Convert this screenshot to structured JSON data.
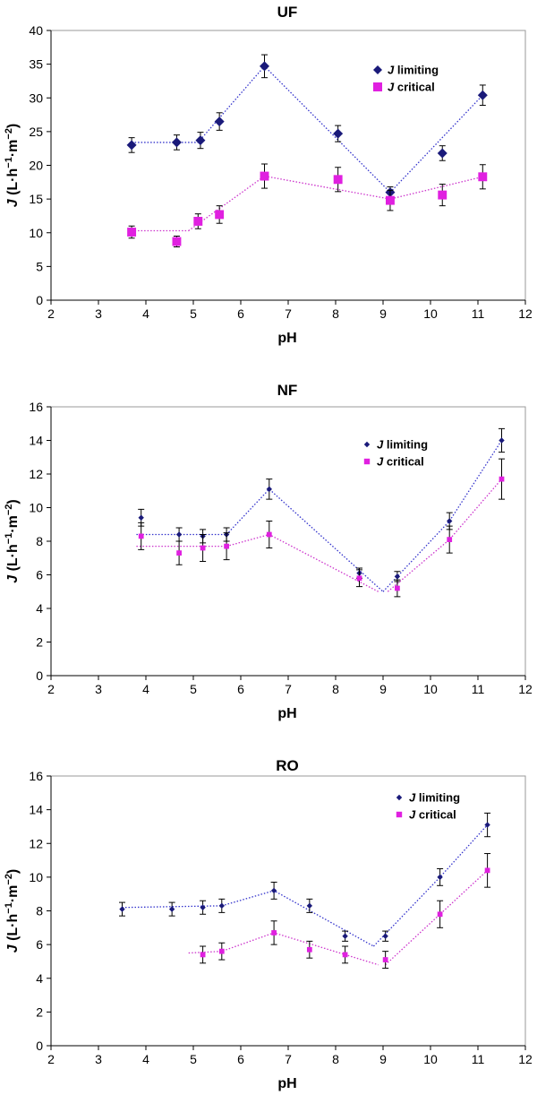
{
  "colors": {
    "limiting": "#1a1a7a",
    "critical": "#e020e0",
    "limiting_line": "#3333cc",
    "critical_line": "#cc33cc",
    "errorbar": "#000000"
  },
  "chart_data": [
    {
      "type": "scatter",
      "title": "UF",
      "xlabel": "pH",
      "ylabel": "J (L·h−1·m−2)",
      "ylabel_parts": {
        "italic": "J",
        "pre": " (L·h",
        "sup1": "−1",
        "mid": "·m",
        "sup2": "−2",
        "post": ")"
      },
      "xlim": [
        2,
        12
      ],
      "ylim": [
        0,
        40
      ],
      "xticks": [
        "2",
        "3",
        "4",
        "5",
        "6",
        "7",
        "8",
        "9",
        "10",
        "11",
        "12"
      ],
      "yticks": [
        "0",
        "5",
        "10",
        "15",
        "20",
        "25",
        "30",
        "35",
        "40"
      ],
      "legend": {
        "position": "top-right",
        "marker_size": "large"
      },
      "series": [
        {
          "name": "J limiting",
          "name_parts": {
            "italic": "J",
            "rest": " limiting"
          },
          "marker": "diamond",
          "points": [
            {
              "x": 3.7,
              "y": 23.0,
              "err": 1.1
            },
            {
              "x": 4.65,
              "y": 23.4,
              "err": 1.1
            },
            {
              "x": 5.15,
              "y": 23.7,
              "err": 1.2
            },
            {
              "x": 5.55,
              "y": 26.5,
              "err": 1.3
            },
            {
              "x": 6.5,
              "y": 34.7,
              "err": 1.7
            },
            {
              "x": 8.05,
              "y": 24.7,
              "err": 1.2
            },
            {
              "x": 9.15,
              "y": 16.0,
              "err": 0.8
            },
            {
              "x": 10.25,
              "y": 21.8,
              "err": 1.1
            },
            {
              "x": 11.1,
              "y": 30.4,
              "err": 1.5
            }
          ],
          "fit_segments": [
            [
              [
                3.7,
                23.4
              ],
              [
                5.1,
                23.4
              ]
            ],
            [
              [
                5.1,
                23.4
              ],
              [
                6.5,
                34.7
              ],
              [
                9.15,
                16.0
              ],
              [
                11.1,
                30.4
              ]
            ]
          ]
        },
        {
          "name": "J critical",
          "name_parts": {
            "italic": "J",
            "rest": " critical"
          },
          "marker": "square",
          "points": [
            {
              "x": 3.7,
              "y": 10.1,
              "err": 0.9
            },
            {
              "x": 4.65,
              "y": 8.7,
              "err": 0.8
            },
            {
              "x": 5.1,
              "y": 11.7,
              "err": 1.1
            },
            {
              "x": 5.55,
              "y": 12.7,
              "err": 1.3
            },
            {
              "x": 6.5,
              "y": 18.4,
              "err": 1.8
            },
            {
              "x": 8.05,
              "y": 17.9,
              "err": 1.8
            },
            {
              "x": 9.15,
              "y": 14.8,
              "err": 1.5
            },
            {
              "x": 10.25,
              "y": 15.6,
              "err": 1.6
            },
            {
              "x": 11.1,
              "y": 18.3,
              "err": 1.8
            }
          ],
          "fit_segments": [
            [
              [
                3.7,
                10.3
              ],
              [
                4.9,
                10.3
              ]
            ],
            [
              [
                4.9,
                10.3
              ],
              [
                6.5,
                18.4
              ],
              [
                9.15,
                15.0
              ],
              [
                11.1,
                18.3
              ]
            ]
          ]
        }
      ]
    },
    {
      "type": "scatter",
      "title": "NF",
      "xlabel": "pH",
      "ylabel": "J (L·h−1·m−2)",
      "ylabel_parts": {
        "italic": "J",
        "pre": " (L·h",
        "sup1": "−1",
        "mid": "·m",
        "sup2": "−2",
        "post": ")"
      },
      "xlim": [
        2,
        12
      ],
      "ylim": [
        0,
        16
      ],
      "xticks": [
        "2",
        "3",
        "4",
        "5",
        "6",
        "7",
        "8",
        "9",
        "10",
        "11",
        "12"
      ],
      "yticks": [
        "0",
        "2",
        "4",
        "6",
        "8",
        "10",
        "12",
        "14",
        "16"
      ],
      "legend": {
        "position": "top-right",
        "marker_size": "small"
      },
      "series": [
        {
          "name": "J limiting",
          "name_parts": {
            "italic": "J",
            "rest": " limiting"
          },
          "marker": "diamond",
          "points": [
            {
              "x": 3.9,
              "y": 9.4,
              "err": 0.5
            },
            {
              "x": 4.7,
              "y": 8.4,
              "err": 0.4
            },
            {
              "x": 5.2,
              "y": 8.3,
              "err": 0.4
            },
            {
              "x": 5.7,
              "y": 8.4,
              "err": 0.4
            },
            {
              "x": 6.6,
              "y": 11.1,
              "err": 0.6
            },
            {
              "x": 8.5,
              "y": 6.1,
              "err": 0.3
            },
            {
              "x": 9.3,
              "y": 5.9,
              "err": 0.3
            },
            {
              "x": 10.4,
              "y": 9.2,
              "err": 0.5
            },
            {
              "x": 11.5,
              "y": 14.0,
              "err": 0.7
            }
          ],
          "fit_segments": [
            [
              [
                3.8,
                8.4
              ],
              [
                5.7,
                8.4
              ]
            ],
            [
              [
                5.7,
                8.4
              ],
              [
                6.6,
                11.1
              ],
              [
                9.0,
                5.0
              ]
            ],
            [
              [
                9.0,
                5.0
              ],
              [
                10.4,
                9.2
              ],
              [
                11.5,
                14.0
              ]
            ]
          ]
        },
        {
          "name": "J critical",
          "name_parts": {
            "italic": "J",
            "rest": " critical"
          },
          "marker": "square",
          "points": [
            {
              "x": 3.9,
              "y": 8.3,
              "err": 0.8
            },
            {
              "x": 4.7,
              "y": 7.3,
              "err": 0.7
            },
            {
              "x": 5.2,
              "y": 7.6,
              "err": 0.8
            },
            {
              "x": 5.7,
              "y": 7.7,
              "err": 0.8
            },
            {
              "x": 6.6,
              "y": 8.4,
              "err": 0.8
            },
            {
              "x": 8.5,
              "y": 5.8,
              "err": 0.5
            },
            {
              "x": 9.3,
              "y": 5.2,
              "err": 0.5
            },
            {
              "x": 10.4,
              "y": 8.1,
              "err": 0.8
            },
            {
              "x": 11.5,
              "y": 11.7,
              "err": 1.2
            }
          ],
          "fit_segments": [
            [
              [
                3.8,
                7.7
              ],
              [
                5.7,
                7.7
              ]
            ],
            [
              [
                5.7,
                7.7
              ],
              [
                6.6,
                8.4
              ],
              [
                8.9,
                5.0
              ]
            ],
            [
              [
                9.1,
                5.0
              ],
              [
                10.4,
                8.1
              ],
              [
                11.5,
                11.7
              ]
            ]
          ]
        }
      ]
    },
    {
      "type": "scatter",
      "title": "RO",
      "xlabel": "pH",
      "ylabel": "J (L·h−1·m−2)",
      "ylabel_parts": {
        "italic": "J",
        "pre": " (L·h",
        "sup1": "−1",
        "mid": "·m",
        "sup2": "−2",
        "post": ")"
      },
      "xlim": [
        2,
        12
      ],
      "ylim": [
        0,
        16
      ],
      "xticks": [
        "2",
        "3",
        "4",
        "5",
        "6",
        "7",
        "8",
        "9",
        "10",
        "11",
        "12"
      ],
      "yticks": [
        "0",
        "2",
        "4",
        "6",
        "8",
        "10",
        "12",
        "14",
        "16"
      ],
      "legend": {
        "position": "top-right",
        "marker_size": "small"
      },
      "series": [
        {
          "name": "J limiting",
          "name_parts": {
            "italic": "J",
            "rest": " limiting"
          },
          "marker": "diamond",
          "points": [
            {
              "x": 3.5,
              "y": 8.1,
              "err": 0.4
            },
            {
              "x": 4.55,
              "y": 8.1,
              "err": 0.4
            },
            {
              "x": 5.2,
              "y": 8.2,
              "err": 0.4
            },
            {
              "x": 5.6,
              "y": 8.3,
              "err": 0.4
            },
            {
              "x": 6.7,
              "y": 9.2,
              "err": 0.5
            },
            {
              "x": 7.45,
              "y": 8.3,
              "err": 0.4
            },
            {
              "x": 8.2,
              "y": 6.5,
              "err": 0.3
            },
            {
              "x": 9.05,
              "y": 6.5,
              "err": 0.3
            },
            {
              "x": 10.2,
              "y": 10.0,
              "err": 0.5
            },
            {
              "x": 11.2,
              "y": 13.1,
              "err": 0.7
            }
          ],
          "fit_segments": [
            [
              [
                3.5,
                8.2
              ],
              [
                5.6,
                8.3
              ]
            ],
            [
              [
                5.6,
                8.3
              ],
              [
                6.7,
                9.2
              ],
              [
                8.8,
                5.9
              ]
            ],
            [
              [
                8.8,
                5.9
              ],
              [
                10.2,
                10.0
              ],
              [
                11.2,
                13.1
              ]
            ]
          ]
        },
        {
          "name": "J critical",
          "name_parts": {
            "italic": "J",
            "rest": " critical"
          },
          "marker": "square",
          "points": [
            {
              "x": 5.2,
              "y": 5.4,
              "err": 0.5
            },
            {
              "x": 5.6,
              "y": 5.6,
              "err": 0.5
            },
            {
              "x": 6.7,
              "y": 6.7,
              "err": 0.7
            },
            {
              "x": 7.45,
              "y": 5.7,
              "err": 0.5
            },
            {
              "x": 8.2,
              "y": 5.4,
              "err": 0.5
            },
            {
              "x": 9.05,
              "y": 5.1,
              "err": 0.5
            },
            {
              "x": 10.2,
              "y": 7.8,
              "err": 0.8
            },
            {
              "x": 11.2,
              "y": 10.4,
              "err": 1.0
            }
          ],
          "fit_segments": [
            [
              [
                4.9,
                5.5
              ],
              [
                5.6,
                5.6
              ],
              [
                6.7,
                6.7
              ],
              [
                8.9,
                4.8
              ]
            ],
            [
              [
                9.05,
                4.8
              ],
              [
                10.2,
                7.8
              ],
              [
                11.2,
                10.4
              ]
            ]
          ]
        }
      ]
    }
  ]
}
